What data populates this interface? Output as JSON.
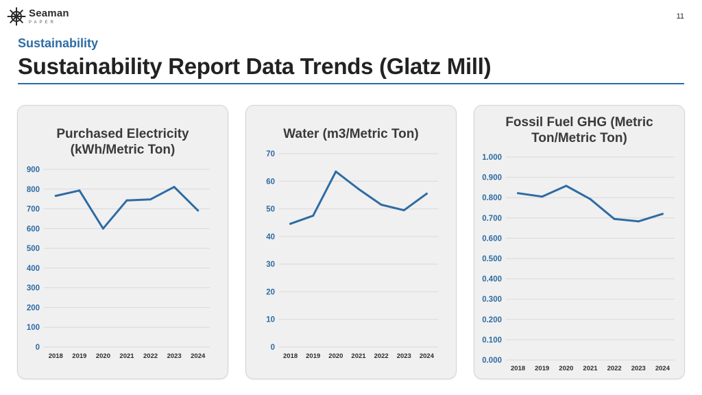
{
  "logo": {
    "name": "Seaman",
    "sub": "PAPER"
  },
  "page_number": "11",
  "section": "Sustainability",
  "title": "Sustainability Report Data Trends (Glatz Mill)",
  "colors": {
    "accent": "#2e6ba4",
    "line": "#2e6ba4",
    "grid": "#d9d9d9"
  },
  "chart_data": [
    {
      "type": "line",
      "title": "Purchased Electricity (kWh/Metric Ton)",
      "categories": [
        "2018",
        "2019",
        "2020",
        "2021",
        "2022",
        "2023",
        "2024"
      ],
      "values": [
        766,
        793,
        600,
        743,
        748,
        811,
        692
      ],
      "yticks": [
        "0",
        "100",
        "200",
        "300",
        "400",
        "500",
        "600",
        "700",
        "800",
        "900"
      ],
      "ylim": [
        0,
        900
      ],
      "xlabel": "",
      "ylabel": "",
      "grid": true
    },
    {
      "type": "line",
      "title": "Water (m3/Metric Ton)",
      "categories": [
        "2018",
        "2019",
        "2020",
        "2021",
        "2022",
        "2023",
        "2024"
      ],
      "values": [
        44.6,
        47.5,
        63.5,
        57.2,
        51.5,
        49.5,
        55.5
      ],
      "yticks": [
        "0",
        "10",
        "20",
        "30",
        "40",
        "50",
        "60",
        "70"
      ],
      "ylim": [
        0,
        70
      ],
      "xlabel": "",
      "ylabel": "",
      "grid": true
    },
    {
      "type": "line",
      "title": "Fossil Fuel GHG (Metric Ton/Metric Ton)",
      "categories": [
        "2018",
        "2019",
        "2020",
        "2021",
        "2022",
        "2023",
        "2024"
      ],
      "values": [
        0.822,
        0.805,
        0.858,
        0.793,
        0.695,
        0.683,
        0.72
      ],
      "yticks": [
        "0.000",
        "0.100",
        "0.200",
        "0.300",
        "0.400",
        "0.500",
        "0.600",
        "0.700",
        "0.800",
        "0.900",
        "1.000"
      ],
      "ylim": [
        0,
        1
      ],
      "xlabel": "",
      "ylabel": "",
      "grid": true
    }
  ]
}
